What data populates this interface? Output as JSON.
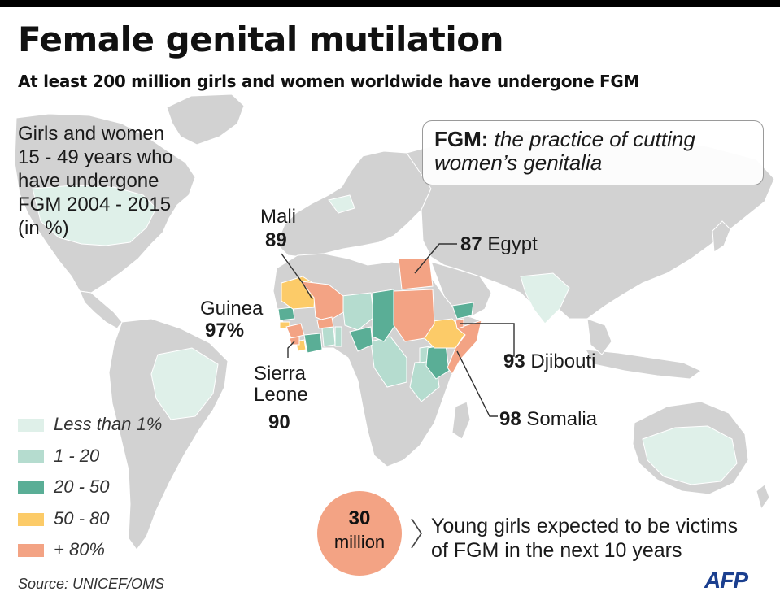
{
  "header": {
    "title": "Female genital mutilation",
    "subtitle": "At least 200 million girls and women worldwide have undergone FGM"
  },
  "measure": {
    "lines": [
      "Girls and women",
      "15 - 49 years who",
      "have undergone",
      "FGM 2004 - 2015",
      "(in %)"
    ]
  },
  "definition": {
    "term": "FGM:",
    "text": "the practice of cutting women’s genitalia"
  },
  "callouts": {
    "mali": {
      "name": "Mali",
      "value": "89"
    },
    "guinea": {
      "name": "Guinea",
      "value": "97%"
    },
    "sierra_leone": {
      "name_line1": "Sierra",
      "name_line2": "Leone",
      "value": "90"
    },
    "egypt": {
      "name": "Egypt",
      "value": "87"
    },
    "djibouti": {
      "name": "Djibouti",
      "value": "93"
    },
    "somalia": {
      "name": "Somalia",
      "value": "98"
    }
  },
  "legend": {
    "items": [
      {
        "label": "Less than 1%",
        "color": "#dff0e9"
      },
      {
        "label": "1 - 20",
        "color": "#b5dccf"
      },
      {
        "label": "20 - 50",
        "color": "#5aae96"
      },
      {
        "label": "50 - 80",
        "color": "#fccb68"
      },
      {
        "label": "+ 80%",
        "color": "#f3a384"
      }
    ]
  },
  "victims": {
    "number": "30",
    "unit": "million",
    "text_line1": "Young girls expected to be victims",
    "text_line2": "of FGM in the next 10 years"
  },
  "source": "Source: UNICEF/OMS",
  "credit": "AFP",
  "colors": {
    "land": "#d2d2d2",
    "ocean": "#ffffff",
    "less_than_1": "#dff0e9",
    "c1_20": "#b5dccf",
    "c20_50": "#5aae96",
    "c50_80": "#fccb68",
    "c80_plus": "#f3a384"
  }
}
